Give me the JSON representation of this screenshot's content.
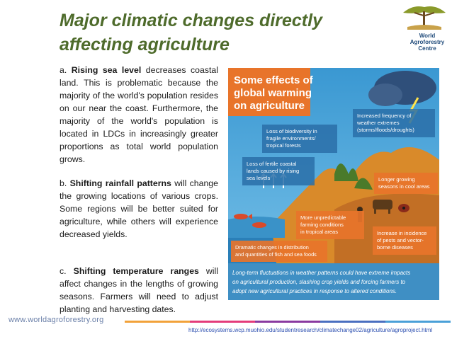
{
  "slide": {
    "title": "Major climatic changes directly affecting agriculture",
    "logo": {
      "name_line1": "World",
      "name_line2": "Agroforestry",
      "name_line3": "Centre"
    },
    "paragraphs": [
      {
        "prefix": "a. ",
        "heading": "Rising sea level",
        "text": " decreases coastal land. This is problematic because the majority of the world's population resides on our near the coast. Furthermore, the majority of the world's population is located in LDCs in increasingly greater proportions as total world population grows."
      },
      {
        "prefix": "b. ",
        "heading": "Shifting rainfall patterns",
        "text": " will change the growing locations of various crops. Some regions will be better suited for agriculture, while others will experience decreased yields."
      },
      {
        "prefix": "c. ",
        "heading": "Shifting temperature ranges",
        "text": " will affect changes in the lengths of growing seasons. Farmers will need to adjust planting and harvesting dates."
      }
    ],
    "footer": {
      "website": "www.worldagroforestry.org",
      "source_url": "http://ecosystems.wcp.muohio.edu/studentresearch/climatechange02/agriculture/agroproject.html",
      "bar_colors": [
        "#f2a23a",
        "#e43c7a",
        "#8a3aa0",
        "#4a6fc0",
        "#4aa0d8"
      ]
    }
  },
  "infographic": {
    "title_line1": "Some effects of",
    "title_line2": "global warming",
    "title_line3": "on agriculture",
    "labels": {
      "extremes": [
        "Increased frequency of",
        "weather extremes",
        "(storms/floods/droughts)"
      ],
      "biodiversity": [
        "Loss of biodiversity in",
        "fragile environments/",
        "tropical forests"
      ],
      "coastal": [
        "Loss of fertile coastal",
        "lands caused by rising",
        "sea levels"
      ],
      "seasons": [
        "Longer growing",
        "seasons in cool areas"
      ],
      "farming": [
        "More unpredictable",
        "farming conditions",
        "in tropical areas"
      ],
      "fish": [
        "Dramatic changes in distribution",
        "and quantities of fish and sea foods"
      ],
      "pests": [
        "Increase in incidence",
        "of pests and vector-",
        "borne diseases"
      ]
    },
    "caption": [
      "Long-term fluctuations in weather patterns could have extreme impacts",
      "on agricultural production, slashing crop yields and forcing farmers to",
      "adopt new agricultural practices in response to altered conditions."
    ],
    "colors": {
      "sky": "#4aa6d8",
      "sea": "#2a7fb8",
      "land": "#d98a2a",
      "caption_bg": "#3f8fc4",
      "title": "#ffffff",
      "title_bg": "#e8742a"
    }
  }
}
